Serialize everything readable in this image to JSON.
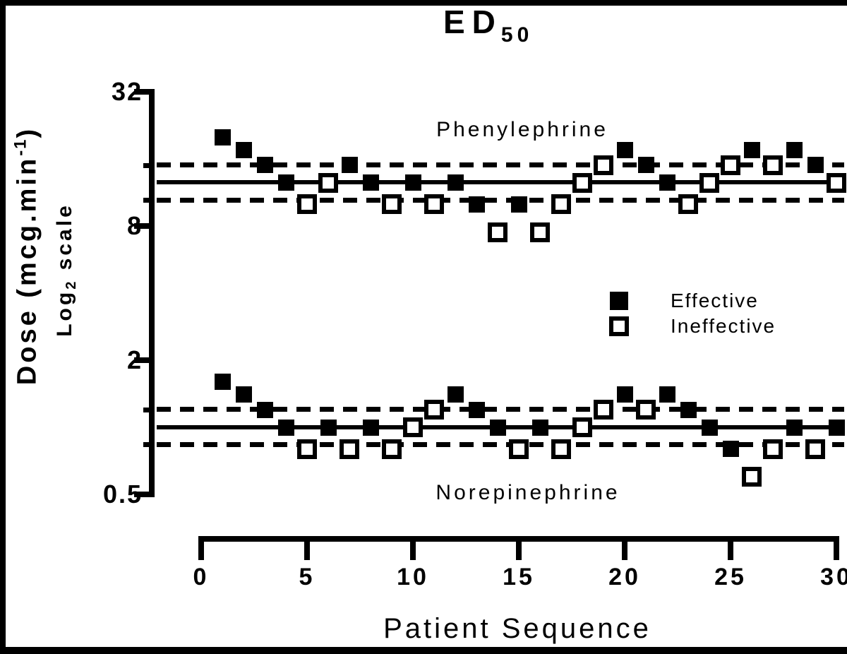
{
  "frame": {
    "background": "#ffffff",
    "ink": "#000000"
  },
  "title": {
    "text": "ED",
    "subscript": "50"
  },
  "y_axis": {
    "title_main": "Dose (mcg.min",
    "title_superscript": "-1",
    "title_suffix": ")",
    "scale_label_pre": "Log",
    "scale_label_sub": "2",
    "scale_label_post": "scale",
    "tick_labels": [
      "32",
      "8",
      "2",
      "0.5"
    ]
  },
  "x_axis": {
    "title": "Patient Sequence",
    "tick_labels": [
      "0",
      "5",
      "10",
      "15",
      "20",
      "25",
      "30"
    ]
  },
  "legend": {
    "effective_label": "Effective",
    "ineffective_label": "Ineffective"
  },
  "chart_data": {
    "type": "scatter",
    "title": "ED50",
    "xlabel": "Patient Sequence",
    "ylabel": "Dose (mcg.min-1), Log2 scale",
    "x_ticks": [
      0,
      5,
      10,
      15,
      20,
      25,
      30
    ],
    "y_ticks": [
      32,
      8,
      2,
      0.5
    ],
    "y_scale": "log2",
    "xlim": [
      0,
      30
    ],
    "ylim": [
      0.5,
      32
    ],
    "legend_position": "middle-right",
    "grid": false,
    "series": [
      {
        "name": "Phenylephrine",
        "ed50": 12.6,
        "ci_upper": 15.0,
        "ci_lower": 10.5,
        "points": [
          {
            "patient": 1,
            "dose": 20,
            "effective": true
          },
          {
            "patient": 2,
            "dose": 17.5,
            "effective": true
          },
          {
            "patient": 3,
            "dose": 15,
            "effective": true
          },
          {
            "patient": 4,
            "dose": 12.5,
            "effective": true
          },
          {
            "patient": 5,
            "dose": 10,
            "effective": false
          },
          {
            "patient": 6,
            "dose": 12.5,
            "effective": false
          },
          {
            "patient": 7,
            "dose": 15,
            "effective": true
          },
          {
            "patient": 8,
            "dose": 12.5,
            "effective": true
          },
          {
            "patient": 9,
            "dose": 10,
            "effective": false
          },
          {
            "patient": 10,
            "dose": 12.5,
            "effective": true
          },
          {
            "patient": 11,
            "dose": 10,
            "effective": false
          },
          {
            "patient": 12,
            "dose": 12.5,
            "effective": true
          },
          {
            "patient": 13,
            "dose": 10,
            "effective": true
          },
          {
            "patient": 14,
            "dose": 7.5,
            "effective": false
          },
          {
            "patient": 15,
            "dose": 10,
            "effective": true
          },
          {
            "patient": 16,
            "dose": 7.5,
            "effective": false
          },
          {
            "patient": 17,
            "dose": 10,
            "effective": false
          },
          {
            "patient": 18,
            "dose": 12.5,
            "effective": false
          },
          {
            "patient": 19,
            "dose": 15,
            "effective": false
          },
          {
            "patient": 20,
            "dose": 17.5,
            "effective": true
          },
          {
            "patient": 21,
            "dose": 15,
            "effective": true
          },
          {
            "patient": 22,
            "dose": 12.5,
            "effective": true
          },
          {
            "patient": 23,
            "dose": 10,
            "effective": false
          },
          {
            "patient": 24,
            "dose": 12.5,
            "effective": false
          },
          {
            "patient": 25,
            "dose": 15,
            "effective": false
          },
          {
            "patient": 26,
            "dose": 17.5,
            "effective": true
          },
          {
            "patient": 27,
            "dose": 15,
            "effective": false
          },
          {
            "patient": 28,
            "dose": 17.5,
            "effective": true
          },
          {
            "patient": 29,
            "dose": 15,
            "effective": true
          },
          {
            "patient": 30,
            "dose": 12.5,
            "effective": false
          }
        ]
      },
      {
        "name": "Norepinephrine",
        "ed50": 1.0,
        "ci_upper": 1.2,
        "ci_lower": 0.84,
        "points": [
          {
            "patient": 1,
            "dose": 1.6,
            "effective": true
          },
          {
            "patient": 2,
            "dose": 1.4,
            "effective": true
          },
          {
            "patient": 3,
            "dose": 1.2,
            "effective": true
          },
          {
            "patient": 4,
            "dose": 1.0,
            "effective": true
          },
          {
            "patient": 5,
            "dose": 0.8,
            "effective": false
          },
          {
            "patient": 6,
            "dose": 1.0,
            "effective": true
          },
          {
            "patient": 7,
            "dose": 0.8,
            "effective": false
          },
          {
            "patient": 8,
            "dose": 1.0,
            "effective": true
          },
          {
            "patient": 9,
            "dose": 0.8,
            "effective": false
          },
          {
            "patient": 10,
            "dose": 1.0,
            "effective": false
          },
          {
            "patient": 11,
            "dose": 1.2,
            "effective": false
          },
          {
            "patient": 12,
            "dose": 1.4,
            "effective": true
          },
          {
            "patient": 13,
            "dose": 1.2,
            "effective": true
          },
          {
            "patient": 14,
            "dose": 1.0,
            "effective": true
          },
          {
            "patient": 15,
            "dose": 0.8,
            "effective": false
          },
          {
            "patient": 16,
            "dose": 1.0,
            "effective": true
          },
          {
            "patient": 17,
            "dose": 0.8,
            "effective": false
          },
          {
            "patient": 18,
            "dose": 1.0,
            "effective": false
          },
          {
            "patient": 19,
            "dose": 1.2,
            "effective": false
          },
          {
            "patient": 20,
            "dose": 1.4,
            "effective": true
          },
          {
            "patient": 21,
            "dose": 1.2,
            "effective": false
          },
          {
            "patient": 22,
            "dose": 1.4,
            "effective": true
          },
          {
            "patient": 23,
            "dose": 1.2,
            "effective": true
          },
          {
            "patient": 24,
            "dose": 1.0,
            "effective": true
          },
          {
            "patient": 25,
            "dose": 0.8,
            "effective": true
          },
          {
            "patient": 26,
            "dose": 0.6,
            "effective": false
          },
          {
            "patient": 27,
            "dose": 0.8,
            "effective": false
          },
          {
            "patient": 28,
            "dose": 1.0,
            "effective": true
          },
          {
            "patient": 29,
            "dose": 0.8,
            "effective": false
          },
          {
            "patient": 30,
            "dose": 1.0,
            "effective": true
          }
        ]
      }
    ]
  }
}
